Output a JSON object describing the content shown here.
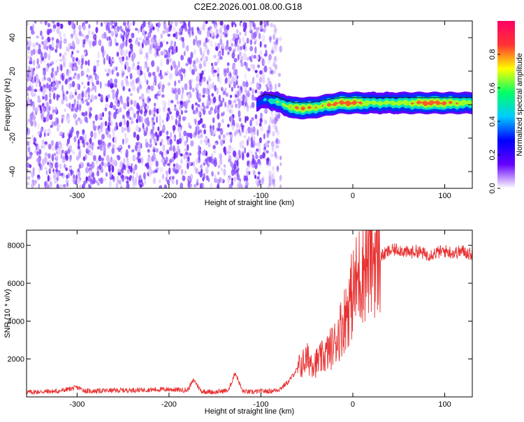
{
  "title": "C2E2.2026.001.08.00.G18",
  "chart_data": [
    {
      "type": "heatmap",
      "title": "C2E2.2026.001.08.00.G18",
      "xlabel": "Height of straight line (km)",
      "ylabel": "Frequency (Hz)",
      "xlim": [
        -355,
        130
      ],
      "ylim": [
        -50,
        50
      ],
      "xticks": [
        -300,
        -200,
        -100,
        0,
        100
      ],
      "xtick_labels": [
        "-300",
        "-200",
        "-100",
        "0",
        "100"
      ],
      "yticks": [
        -40,
        -20,
        0,
        20,
        40
      ],
      "ytick_labels": [
        "-40",
        "-20",
        "0",
        "20",
        "40"
      ],
      "colorbar": {
        "label": "Normalized spectral amplitude",
        "range": [
          0,
          1
        ],
        "ticks": [
          0.0,
          0.2,
          0.4,
          0.6,
          0.8
        ],
        "tick_labels": [
          "0.0",
          "0.2",
          "0.4",
          "0.6",
          "0.8"
        ],
        "colormap": [
          "#ffffff",
          "#6600ff",
          "#0000ff",
          "#00ccff",
          "#00ff66",
          "#ffff00",
          "#ff3333",
          "#ff0066"
        ]
      },
      "noise_region_x": [
        -355,
        -92
      ],
      "signal_track": {
        "x": [
          -105,
          -95,
          -85,
          -75,
          -65,
          -55,
          -45,
          -35,
          -25,
          -15,
          -5,
          5,
          20,
          40,
          60,
          80,
          100,
          120,
          130
        ],
        "freq": [
          0,
          3,
          2,
          0,
          -2,
          -2,
          -2,
          -1,
          0,
          1,
          1,
          1,
          1,
          1,
          1,
          1,
          1,
          1,
          1
        ],
        "amplitude": [
          0.3,
          0.45,
          0.6,
          0.65,
          0.8,
          0.85,
          0.8,
          0.75,
          0.85,
          0.85,
          0.9,
          0.85,
          0.7,
          0.7,
          0.75,
          0.9,
          0.85,
          0.75,
          0.7
        ]
      },
      "grid": false,
      "legend": "none"
    },
    {
      "type": "line",
      "xlabel": "Height of straight line (km)",
      "ylabel": "SNR (10 * v/v)",
      "xlim": [
        -355,
        130
      ],
      "ylim": [
        0,
        8800
      ],
      "xticks": [
        -300,
        -200,
        -100,
        0,
        100
      ],
      "xtick_labels": [
        "-300",
        "-200",
        "-100",
        "0",
        "100"
      ],
      "yticks": [
        2000,
        4000,
        6000,
        8000
      ],
      "ytick_labels": [
        "2000",
        "4000",
        "6000",
        "8000"
      ],
      "color": "#e83232",
      "series": [
        {
          "x": [
            -355,
            -320,
            -300,
            -290,
            -250,
            -200,
            -180,
            -173,
            -165,
            -150,
            -135,
            -128,
            -120,
            -110,
            -100,
            -90,
            -80,
            -70,
            -60,
            -50,
            -40,
            -30,
            -20,
            -10,
            0,
            10,
            20,
            30,
            40,
            50,
            60,
            70,
            80,
            90,
            100,
            110,
            120,
            130
          ],
          "y": [
            250,
            300,
            500,
            300,
            350,
            400,
            350,
            900,
            300,
            250,
            350,
            1300,
            300,
            250,
            300,
            300,
            400,
            800,
            1500,
            2000,
            1800,
            2200,
            2800,
            4000,
            5500,
            6800,
            7500,
            7400,
            7700,
            7800,
            7600,
            7700,
            7500,
            7600,
            7700,
            7600,
            7700,
            7500
          ]
        }
      ],
      "grid": false,
      "legend": "none"
    }
  ]
}
